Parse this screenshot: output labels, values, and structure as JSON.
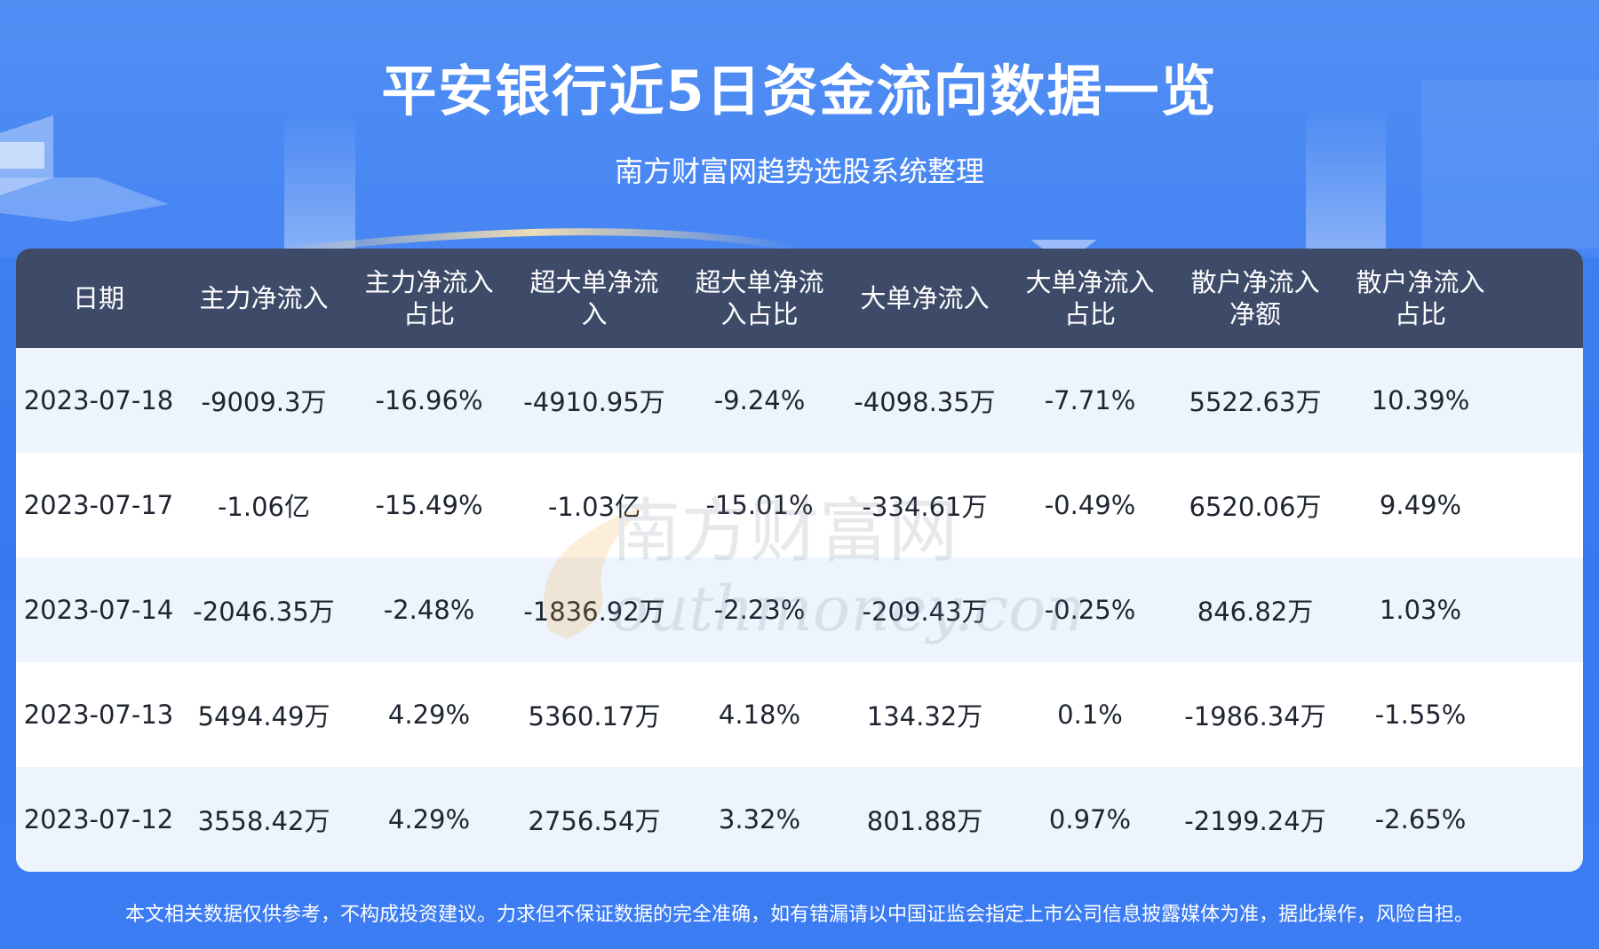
{
  "header": {
    "title": "平安银行近5日资金流向数据一览",
    "subtitle": "南方财富网趋势选股系统整理"
  },
  "table": {
    "columns": [
      [
        "日期"
      ],
      [
        "主力净流入"
      ],
      [
        "主力净流入",
        "占比"
      ],
      [
        "超大单净流",
        "入"
      ],
      [
        "超大单净流",
        "入占比"
      ],
      [
        "大单净流入"
      ],
      [
        "大单净流入",
        "占比"
      ],
      [
        "散户净流入",
        "净额"
      ],
      [
        "散户净流入",
        "占比"
      ]
    ],
    "rows": [
      [
        "2023-07-18",
        "-9009.3万",
        "-16.96%",
        "-4910.95万",
        "-9.24%",
        "-4098.35万",
        "-7.71%",
        "5522.63万",
        "10.39%"
      ],
      [
        "2023-07-17",
        "-1.06亿",
        "-15.49%",
        "-1.03亿",
        "-15.01%",
        "-334.61万",
        "-0.49%",
        "6520.06万",
        "9.49%"
      ],
      [
        "2023-07-14",
        "-2046.35万",
        "-2.48%",
        "-1836.92万",
        "-2.23%",
        "-209.43万",
        "-0.25%",
        "846.82万",
        "1.03%"
      ],
      [
        "2023-07-13",
        "5494.49万",
        "4.29%",
        "5360.17万",
        "4.18%",
        "134.32万",
        "0.1%",
        "-1986.34万",
        "-1.55%"
      ],
      [
        "2023-07-12",
        "3558.42万",
        "4.29%",
        "2756.54万",
        "3.32%",
        "801.88万",
        "0.97%",
        "-2199.24万",
        "-2.65%"
      ]
    ]
  },
  "watermark": {
    "cn": "南方财富网",
    "en": "outhmoney.com"
  },
  "footer": {
    "disclaimer": "本文相关数据仅供参考，不构成投资建议。力求但不保证数据的完全准确，如有错漏请以中国证监会指定上市公司信息披露媒体为准，据此操作，风险自担。"
  },
  "colors": {
    "background": "#3f7ff1",
    "header_row": "#3d4a68",
    "row_odd": "#eef4fd",
    "row_even": "#ffffff"
  }
}
